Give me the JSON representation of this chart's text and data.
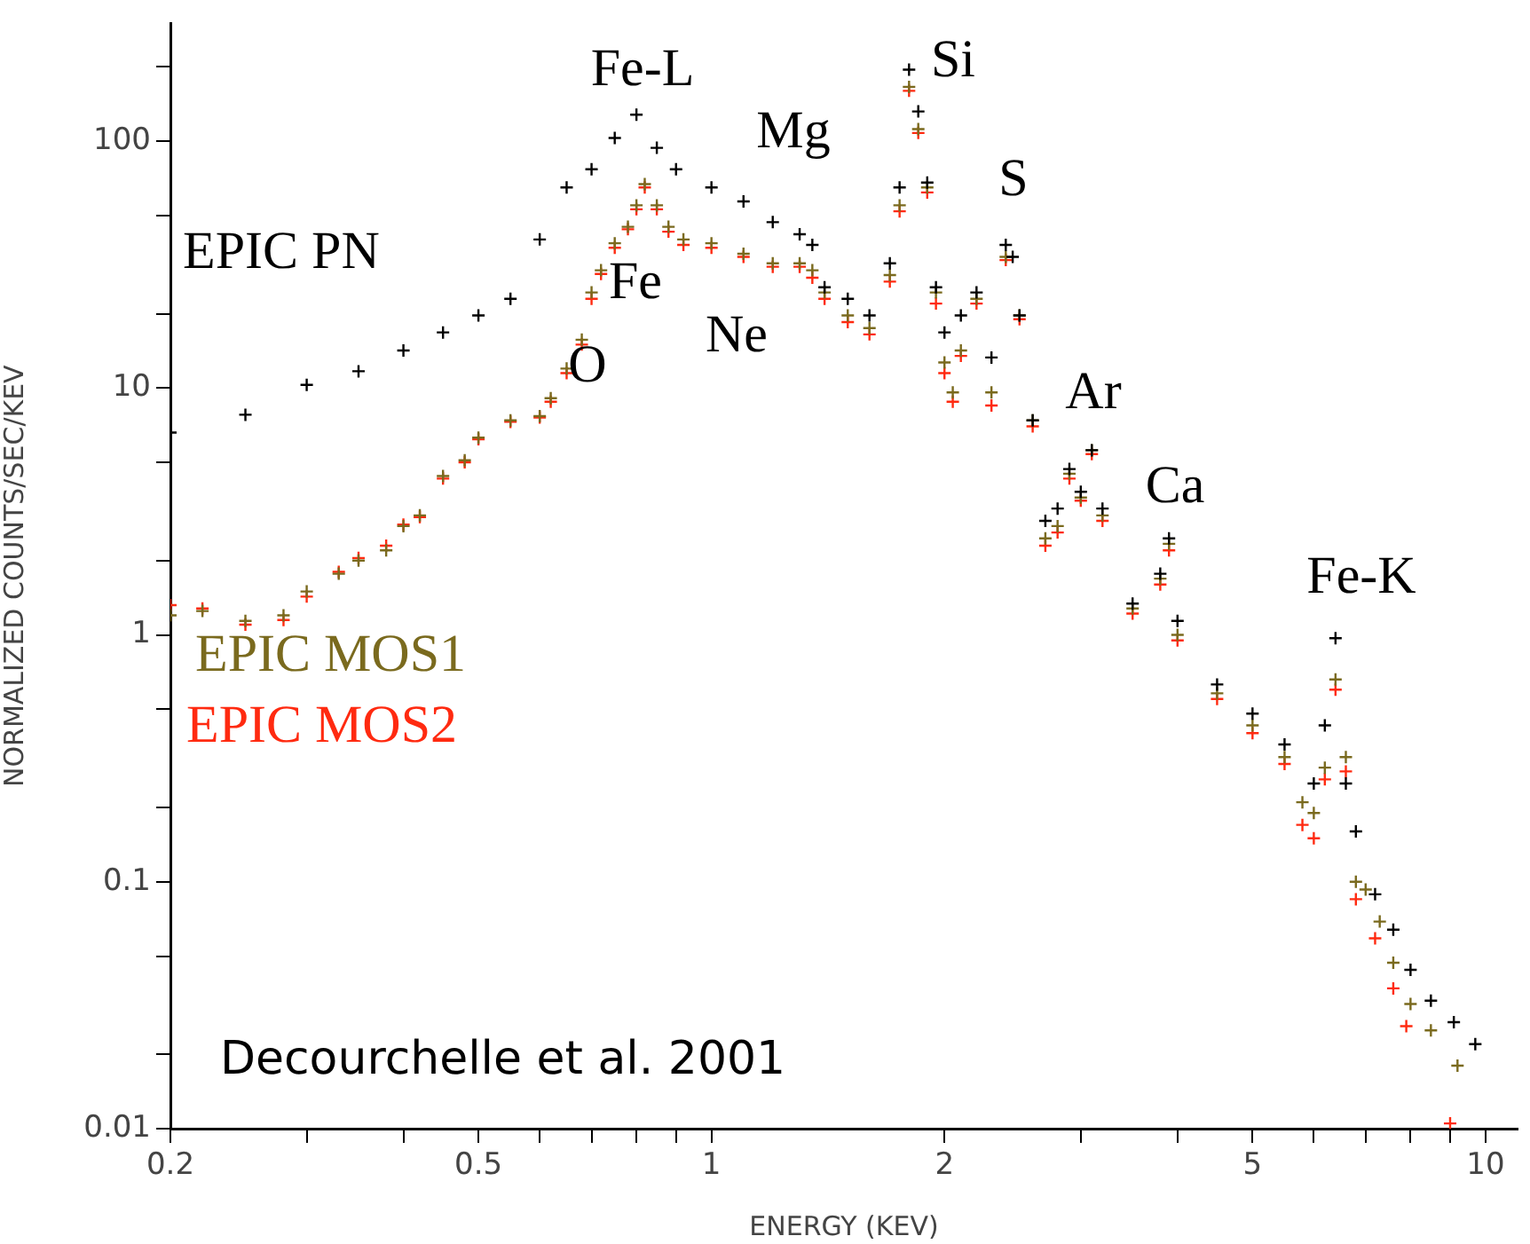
{
  "chart_data": {
    "type": "scatter",
    "xlabel": "ENERGY (KEV)",
    "ylabel": "NORMALIZED COUNTS/SEC/KEV",
    "log": "xy",
    "grid": false,
    "legend": false,
    "marker": "cross",
    "xlim": [
      0.2,
      11
    ],
    "ylim": [
      0.01,
      300
    ],
    "xticks": [
      0.2,
      {
        "value": 0.3,
        "label": null
      },
      {
        "value": 0.4,
        "label": null
      },
      0.5,
      {
        "value": 0.6,
        "label": null
      },
      {
        "value": 0.7,
        "label": null
      },
      {
        "value": 0.8,
        "label": null
      },
      {
        "value": 0.9,
        "label": null
      },
      1,
      2,
      {
        "value": 3,
        "label": null
      },
      {
        "value": 4,
        "label": null
      },
      5,
      {
        "value": 6,
        "label": null
      },
      {
        "value": 7,
        "label": null
      },
      {
        "value": 8,
        "label": null
      },
      {
        "value": 9,
        "label": null
      },
      10
    ],
    "yticks": [
      0.01,
      {
        "value": 0.02,
        "label": null
      },
      {
        "value": 0.05,
        "label": null
      },
      0.1,
      {
        "value": 0.2,
        "label": null
      },
      {
        "value": 0.5,
        "label": null
      },
      1,
      {
        "value": 2,
        "label": null
      },
      {
        "value": 5,
        "label": null
      },
      10,
      {
        "value": 20,
        "label": null
      },
      {
        "value": 50,
        "label": null
      },
      100,
      {
        "value": 200,
        "label": null
      }
    ],
    "series": [
      {
        "name": "EPIC PN",
        "color": "#000000",
        "x": [
          0.2,
          0.25,
          0.3,
          0.35,
          0.4,
          0.45,
          0.5,
          0.55,
          0.6,
          0.65,
          0.7,
          0.75,
          0.8,
          0.85,
          0.9,
          1.0,
          1.1,
          1.2,
          1.3,
          1.35,
          1.4,
          1.5,
          1.6,
          1.7,
          1.75,
          1.8,
          1.85,
          1.9,
          1.95,
          2.0,
          2.1,
          2.2,
          2.3,
          2.4,
          2.45,
          2.5,
          2.6,
          2.7,
          2.8,
          2.9,
          3.0,
          3.1,
          3.2,
          3.5,
          3.8,
          3.9,
          4.0,
          4.5,
          5.0,
          5.5,
          6.0,
          6.2,
          6.4,
          6.6,
          6.8,
          7.2,
          7.6,
          8.0,
          8.5,
          9.1,
          9.7
        ],
        "values": [
          6.6,
          7.8,
          10.3,
          11.7,
          14.2,
          16.8,
          19.7,
          23,
          40,
          65,
          77,
          103,
          128,
          94,
          77,
          65,
          57,
          47,
          42,
          38,
          25.6,
          23,
          19.7,
          32,
          65,
          195,
          132,
          68,
          25.6,
          16.8,
          19.7,
          24.4,
          13.3,
          38,
          34,
          19.7,
          7.4,
          2.9,
          3.25,
          4.7,
          3.8,
          5.6,
          3.25,
          1.34,
          1.77,
          2.46,
          1.14,
          0.63,
          0.48,
          0.36,
          0.25,
          0.43,
          0.97,
          0.25,
          0.16,
          0.089,
          0.064,
          0.044,
          0.033,
          0.027,
          0.022
        ]
      },
      {
        "name": "EPIC MOS1",
        "color": "#7a6a1e",
        "x": [
          0.2,
          0.22,
          0.25,
          0.28,
          0.3,
          0.33,
          0.35,
          0.38,
          0.4,
          0.42,
          0.45,
          0.48,
          0.5,
          0.55,
          0.6,
          0.62,
          0.65,
          0.68,
          0.7,
          0.72,
          0.75,
          0.78,
          0.8,
          0.82,
          0.85,
          0.88,
          0.92,
          1.0,
          1.1,
          1.2,
          1.3,
          1.35,
          1.4,
          1.5,
          1.6,
          1.7,
          1.75,
          1.8,
          1.85,
          1.9,
          1.95,
          2.0,
          2.05,
          2.1,
          2.2,
          2.3,
          2.4,
          2.5,
          2.6,
          2.7,
          2.8,
          2.9,
          3.0,
          3.1,
          3.2,
          3.5,
          3.8,
          3.9,
          4.0,
          4.5,
          5.0,
          5.5,
          5.8,
          6.0,
          6.2,
          6.4,
          6.6,
          6.8,
          7.0,
          7.3,
          7.6,
          8.0,
          8.5,
          9.2
        ],
        "values": [
          1.2,
          1.25,
          1.14,
          1.2,
          1.5,
          1.77,
          2.0,
          2.2,
          2.76,
          3.05,
          4.4,
          5.1,
          6.3,
          7.4,
          7.7,
          9.1,
          12,
          15.7,
          24.4,
          30,
          38.6,
          45,
          55,
          67,
          55,
          45,
          40,
          38.6,
          35,
          32,
          32,
          30,
          24.4,
          19.7,
          17.5,
          28.7,
          55,
          166,
          112,
          65,
          24.4,
          12.7,
          9.6,
          14.2,
          23,
          9.6,
          34,
          19.7,
          7.4,
          2.46,
          2.76,
          4.5,
          3.6,
          5.6,
          3.05,
          1.28,
          1.69,
          2.34,
          1.0,
          0.58,
          0.43,
          0.32,
          0.21,
          0.19,
          0.29,
          0.66,
          0.32,
          0.1,
          0.093,
          0.069,
          0.047,
          0.032,
          0.025,
          0.018
        ]
      },
      {
        "name": "EPIC MOS2",
        "color": "#ff2a10",
        "x": [
          0.2,
          0.22,
          0.25,
          0.28,
          0.3,
          0.33,
          0.35,
          0.38,
          0.4,
          0.42,
          0.45,
          0.48,
          0.5,
          0.55,
          0.6,
          0.62,
          0.65,
          0.68,
          0.7,
          0.72,
          0.75,
          0.78,
          0.8,
          0.82,
          0.85,
          0.88,
          0.92,
          1.0,
          1.1,
          1.2,
          1.3,
          1.35,
          1.4,
          1.5,
          1.6,
          1.7,
          1.75,
          1.8,
          1.85,
          1.9,
          1.95,
          2.0,
          2.05,
          2.1,
          2.2,
          2.3,
          2.4,
          2.5,
          2.6,
          2.7,
          2.8,
          2.9,
          3.0,
          3.1,
          3.2,
          3.5,
          3.8,
          3.9,
          4.0,
          4.5,
          5.0,
          5.5,
          5.8,
          6.0,
          6.2,
          6.4,
          6.6,
          6.8,
          7.2,
          7.6,
          7.9,
          9.0
        ],
        "values": [
          1.32,
          1.28,
          1.1,
          1.15,
          1.43,
          1.8,
          2.05,
          2.3,
          2.8,
          3.0,
          4.3,
          5.0,
          6.2,
          7.3,
          7.6,
          8.8,
          11.5,
          15,
          23,
          29,
          37,
          44,
          53,
          65,
          53,
          43,
          38,
          37,
          34,
          31,
          31,
          28,
          23,
          18.5,
          16.5,
          27,
          52,
          160,
          108,
          62,
          22,
          11.5,
          8.8,
          13.5,
          22,
          8.5,
          33,
          19,
          7,
          2.3,
          2.6,
          4.3,
          3.5,
          5.4,
          2.9,
          1.22,
          1.6,
          2.2,
          0.95,
          0.55,
          0.4,
          0.3,
          0.17,
          0.15,
          0.26,
          0.6,
          0.28,
          0.085,
          0.059,
          0.037,
          0.026,
          0.0105
        ]
      }
    ],
    "annotations": [
      "Fe-L",
      "Mg",
      "Si",
      "S",
      "Ar",
      "Ca",
      "Fe-K",
      "Fe",
      "O",
      "Ne",
      "Decourchelle et al. 2001"
    ]
  }
}
